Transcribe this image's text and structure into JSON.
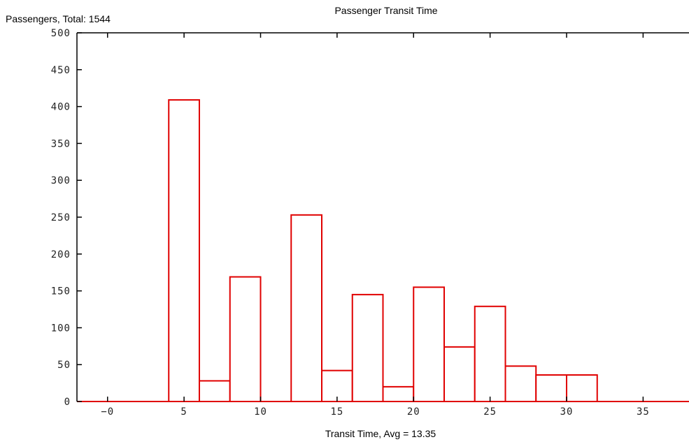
{
  "chart_data": {
    "type": "bar",
    "title": "Passenger Transit Time",
    "ylabel": "Passengers, Total: 1544",
    "xlabel": "Transit Time, Avg = 13.35",
    "xlim": [
      -2,
      38
    ],
    "ylim": [
      0,
      500
    ],
    "x_ticks": [
      0,
      5,
      10,
      15,
      20,
      25,
      30,
      35
    ],
    "x_tick_labels": [
      "−0",
      "5",
      "10",
      "15",
      "20",
      "25",
      "30",
      "35"
    ],
    "y_ticks": [
      0,
      50,
      100,
      150,
      200,
      250,
      300,
      350,
      400,
      450,
      500
    ],
    "y_tick_labels": [
      "0",
      "50",
      "100",
      "150",
      "200",
      "250",
      "300",
      "350",
      "400",
      "450",
      "500"
    ],
    "grid": false,
    "bin_width": 2,
    "bins": [
      {
        "start": 4,
        "end": 6,
        "value": 409
      },
      {
        "start": 6,
        "end": 8,
        "value": 28
      },
      {
        "start": 8,
        "end": 10,
        "value": 169
      },
      {
        "start": 10,
        "end": 12,
        "value": 0
      },
      {
        "start": 12,
        "end": 14,
        "value": 253
      },
      {
        "start": 14,
        "end": 16,
        "value": 42
      },
      {
        "start": 16,
        "end": 18,
        "value": 145
      },
      {
        "start": 18,
        "end": 20,
        "value": 20
      },
      {
        "start": 20,
        "end": 22,
        "value": 155
      },
      {
        "start": 22,
        "end": 24,
        "value": 74
      },
      {
        "start": 24,
        "end": 26,
        "value": 129
      },
      {
        "start": 26,
        "end": 28,
        "value": 48
      },
      {
        "start": 28,
        "end": 30,
        "value": 36
      },
      {
        "start": 30,
        "end": 32,
        "value": 36
      }
    ],
    "colors": {
      "bar_edge": "#e00000",
      "bar_fill": "#ffffff",
      "axis": "#000000"
    }
  }
}
